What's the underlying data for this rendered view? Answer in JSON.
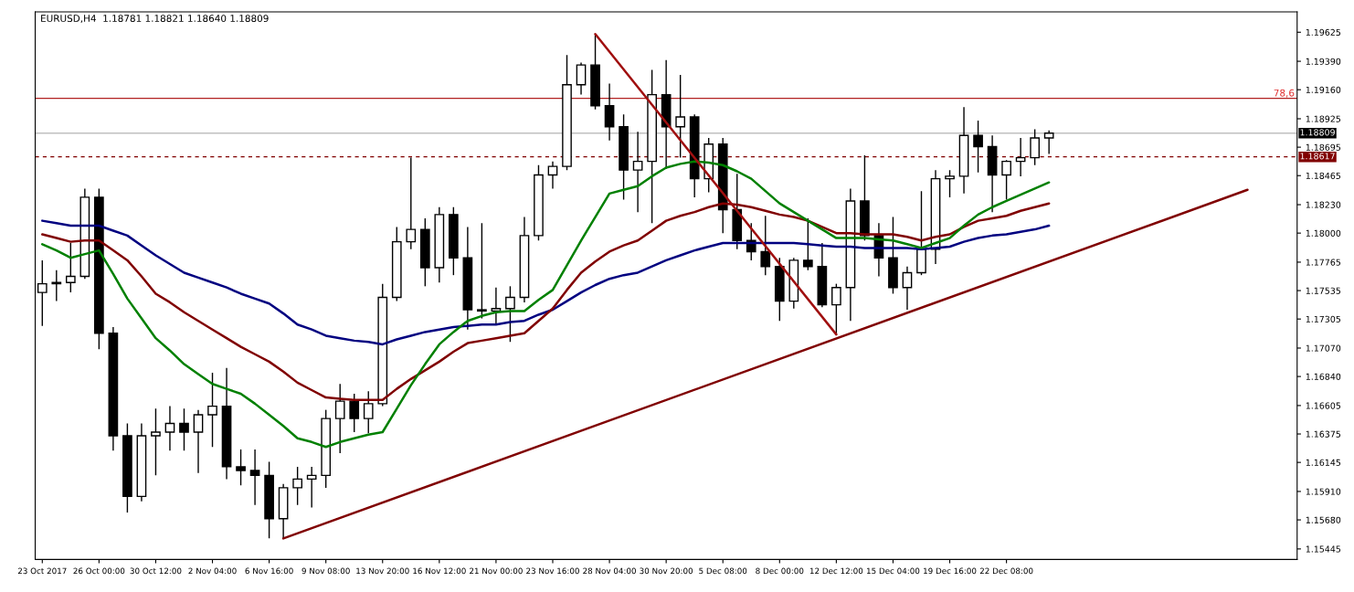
{
  "chart_data": {
    "type": "candlestick",
    "title": "EURUSD,H4  1.18781 1.18821 1.18640 1.18809",
    "categories": [
      "23 Oct 2017",
      null,
      null,
      null,
      "26 Oct 00:00",
      null,
      null,
      null,
      "30 Oct 12:00",
      null,
      null,
      null,
      "2 Nov 04:00",
      null,
      null,
      null,
      "6 Nov 16:00",
      null,
      null,
      null,
      "9 Nov 08:00",
      null,
      null,
      null,
      "13 Nov 20:00",
      null,
      null,
      null,
      "16 Nov 12:00",
      null,
      null,
      null,
      "21 Nov 00:00",
      null,
      null,
      null,
      "23 Nov 16:00",
      null,
      null,
      null,
      "28 Nov 04:00",
      null,
      null,
      null,
      "30 Nov 20:00",
      null,
      null,
      null,
      "5 Dec 08:00",
      null,
      null,
      null,
      "8 Dec 00:00",
      null,
      null,
      null,
      "12 Dec 12:00",
      null,
      null,
      null,
      "15 Dec 04:00",
      null,
      null,
      null,
      "19 Dec 16:00",
      null,
      null,
      null,
      "22 Dec 08:00",
      null,
      null,
      null,
      null,
      null,
      null,
      null,
      null,
      null,
      null,
      null,
      null,
      null,
      null,
      null,
      null,
      null,
      null,
      null,
      null
    ],
    "ohlc": [
      [
        1.1752,
        1.1778,
        1.1725,
        1.1759
      ],
      [
        1.1759,
        1.177,
        1.1745,
        1.176
      ],
      [
        1.176,
        1.1792,
        1.1752,
        1.1765
      ],
      [
        1.1765,
        1.1836,
        1.1763,
        1.1829
      ],
      [
        1.1829,
        1.1836,
        1.1706,
        1.1719
      ],
      [
        1.1719,
        1.1724,
        1.1624,
        1.1636
      ],
      [
        1.1636,
        1.1646,
        1.1574,
        1.1587
      ],
      [
        1.1587,
        1.1646,
        1.1583,
        1.1636
      ],
      [
        1.1636,
        1.1658,
        1.1604,
        1.1639
      ],
      [
        1.1639,
        1.166,
        1.1624,
        1.1646
      ],
      [
        1.1646,
        1.1658,
        1.1624,
        1.1639
      ],
      [
        1.1639,
        1.1657,
        1.1606,
        1.1653
      ],
      [
        1.1653,
        1.1687,
        1.1627,
        1.166
      ],
      [
        1.166,
        1.1691,
        1.1601,
        1.1611
      ],
      [
        1.1611,
        1.1625,
        1.1596,
        1.1608
      ],
      [
        1.1608,
        1.1625,
        1.158,
        1.1604
      ],
      [
        1.1604,
        1.1615,
        1.1553,
        1.1569
      ],
      [
        1.1569,
        1.1597,
        1.1553,
        1.1594
      ],
      [
        1.1594,
        1.1611,
        1.158,
        1.1601
      ],
      [
        1.1601,
        1.1611,
        1.1578,
        1.1604
      ],
      [
        1.1604,
        1.1657,
        1.1594,
        1.165
      ],
      [
        1.165,
        1.1678,
        1.1622,
        1.1664
      ],
      [
        1.1664,
        1.167,
        1.1639,
        1.165
      ],
      [
        1.165,
        1.1672,
        1.1638,
        1.1662
      ],
      [
        1.1662,
        1.1759,
        1.166,
        1.1748
      ],
      [
        1.1748,
        1.1805,
        1.1745,
        1.1793
      ],
      [
        1.1793,
        1.1861,
        1.1787,
        1.1803
      ],
      [
        1.1803,
        1.1812,
        1.1757,
        1.1772
      ],
      [
        1.1772,
        1.1821,
        1.176,
        1.1815
      ],
      [
        1.1815,
        1.1821,
        1.1766,
        1.178
      ],
      [
        1.178,
        1.1805,
        1.1722,
        1.1738
      ],
      [
        1.1738,
        1.1808,
        1.1731,
        1.1737
      ],
      [
        1.1737,
        1.1756,
        1.1727,
        1.1739
      ],
      [
        1.1739,
        1.1757,
        1.1712,
        1.1748
      ],
      [
        1.1748,
        1.1813,
        1.1744,
        1.1798
      ],
      [
        1.1798,
        1.1855,
        1.1794,
        1.1847
      ],
      [
        1.1847,
        1.1858,
        1.1836,
        1.1854
      ],
      [
        1.1854,
        1.1944,
        1.1851,
        1.192
      ],
      [
        1.192,
        1.1938,
        1.1912,
        1.1936
      ],
      [
        1.1936,
        1.1961,
        1.19,
        1.1903
      ],
      [
        1.1903,
        1.1921,
        1.1875,
        1.1886
      ],
      [
        1.1886,
        1.1896,
        1.1827,
        1.1851
      ],
      [
        1.1851,
        1.1882,
        1.1817,
        1.1858
      ],
      [
        1.1858,
        1.1932,
        1.1808,
        1.1912
      ],
      [
        1.1912,
        1.194,
        1.1852,
        1.1886
      ],
      [
        1.1886,
        1.1928,
        1.1861,
        1.1894
      ],
      [
        1.1894,
        1.1896,
        1.1829,
        1.1844
      ],
      [
        1.1844,
        1.1877,
        1.1833,
        1.1872
      ],
      [
        1.1872,
        1.1877,
        1.18,
        1.1819
      ],
      [
        1.1819,
        1.1848,
        1.1787,
        1.1794
      ],
      [
        1.1794,
        1.1808,
        1.1778,
        1.1785
      ],
      [
        1.1785,
        1.1814,
        1.1766,
        1.1773
      ],
      [
        1.1773,
        1.178,
        1.1729,
        1.1745
      ],
      [
        1.1745,
        1.178,
        1.1739,
        1.1778
      ],
      [
        1.1778,
        1.1812,
        1.177,
        1.1773
      ],
      [
        1.1773,
        1.1792,
        1.174,
        1.1742
      ],
      [
        1.1742,
        1.1759,
        1.1718,
        1.1756
      ],
      [
        1.1756,
        1.1836,
        1.1729,
        1.1826
      ],
      [
        1.1826,
        1.1863,
        1.1794,
        1.1798
      ],
      [
        1.1798,
        1.1808,
        1.1765,
        1.178
      ],
      [
        1.178,
        1.1813,
        1.1751,
        1.1756
      ],
      [
        1.1756,
        1.1773,
        1.1738,
        1.1768
      ],
      [
        1.1768,
        1.1834,
        1.1766,
        1.1787
      ],
      [
        1.1787,
        1.1851,
        1.1775,
        1.1844
      ],
      [
        1.1844,
        1.1851,
        1.1829,
        1.1846
      ],
      [
        1.1846,
        1.1902,
        1.1832,
        1.1879
      ],
      [
        1.1879,
        1.1891,
        1.1849,
        1.187
      ],
      [
        1.187,
        1.1879,
        1.1817,
        1.1847
      ],
      [
        1.1847,
        1.1859,
        1.1827,
        1.1858
      ],
      [
        1.1858,
        1.1877,
        1.1846,
        1.1861
      ],
      [
        1.1861,
        1.1884,
        1.1855,
        1.1877
      ],
      [
        1.1877,
        1.1883,
        1.1864,
        1.18809
      ],
      null,
      null,
      null,
      null,
      null,
      null,
      null,
      null,
      null,
      null,
      null,
      null,
      null,
      null,
      null,
      null,
      null
    ],
    "series": [
      {
        "type": "line",
        "color": "#000080",
        "values": [
          1.181,
          1.1808,
          1.1806,
          1.1806,
          1.1806,
          1.1802,
          1.1798,
          1.179,
          1.1782,
          1.1775,
          1.1768,
          1.1764,
          1.176,
          1.1756,
          1.1751,
          1.1747,
          1.1743,
          1.1735,
          1.1726,
          1.1722,
          1.1717,
          1.1715,
          1.1713,
          1.1712,
          1.171,
          1.1714,
          1.1717,
          1.172,
          1.1722,
          1.1724,
          1.1725,
          1.1726,
          1.1726,
          1.1728,
          1.1729,
          1.1734,
          1.1738,
          1.1745,
          1.1752,
          1.1758,
          1.1763,
          1.1766,
          1.1768,
          1.1773,
          1.1778,
          1.1782,
          1.1786,
          1.1789,
          1.1792,
          1.1792,
          1.1792,
          1.1792,
          1.1792,
          1.1792,
          1.1791,
          1.179,
          1.1789,
          1.1789,
          1.1788,
          1.1788,
          1.1788,
          1.1788,
          1.1787,
          1.1788,
          1.1789,
          1.1793,
          1.1796,
          1.1798,
          1.1799,
          1.1801,
          1.1803,
          1.1806,
          null,
          null,
          null,
          null,
          null,
          null,
          null,
          null,
          null,
          null,
          null,
          null,
          null,
          null,
          null,
          null,
          null
        ]
      },
      {
        "type": "line",
        "color": "#800000",
        "values": [
          1.1799,
          1.1796,
          1.1793,
          1.1794,
          1.1794,
          1.1786,
          1.1778,
          1.1765,
          1.1751,
          1.1744,
          1.1736,
          1.1729,
          1.1722,
          1.1715,
          1.1708,
          1.1702,
          1.1696,
          1.1688,
          1.1679,
          1.1673,
          1.1667,
          1.1666,
          1.1665,
          1.1665,
          1.1665,
          1.1674,
          1.1682,
          1.1689,
          1.1696,
          1.1704,
          1.1711,
          1.1713,
          1.1715,
          1.1717,
          1.1719,
          1.1729,
          1.1739,
          1.1754,
          1.1768,
          1.1777,
          1.1785,
          1.179,
          1.1794,
          1.1802,
          1.181,
          1.1814,
          1.1817,
          1.1821,
          1.1824,
          1.1823,
          1.1821,
          1.1818,
          1.1815,
          1.1813,
          1.181,
          1.1805,
          1.18,
          1.18,
          1.1799,
          1.1799,
          1.1799,
          1.1797,
          1.1794,
          1.1797,
          1.1799,
          1.1805,
          1.181,
          1.1812,
          1.1814,
          1.1818,
          1.1821,
          1.1824,
          null,
          null,
          null,
          null,
          null,
          null,
          null,
          null,
          null,
          null,
          null,
          null,
          null,
          null,
          null,
          null,
          null
        ]
      },
      {
        "type": "line",
        "color": "#008000",
        "values": [
          1.1791,
          1.1786,
          1.178,
          1.1783,
          1.1786,
          1.1767,
          1.1747,
          1.1731,
          1.1715,
          1.1705,
          1.1694,
          1.1686,
          1.1678,
          1.1674,
          1.167,
          1.1662,
          1.1653,
          1.1644,
          1.1634,
          1.1631,
          1.1627,
          1.1631,
          1.1634,
          1.1637,
          1.1639,
          1.1658,
          1.1677,
          1.1694,
          1.171,
          1.172,
          1.1729,
          1.1733,
          1.1736,
          1.1737,
          1.1737,
          1.1746,
          1.1754,
          1.1774,
          1.1794,
          1.1813,
          1.1832,
          1.1835,
          1.1838,
          1.1846,
          1.1853,
          1.1856,
          1.1858,
          1.1857,
          1.1855,
          1.185,
          1.1844,
          1.1834,
          1.1824,
          1.1817,
          1.181,
          1.1803,
          1.1796,
          1.1796,
          1.1796,
          1.1795,
          1.1794,
          1.1791,
          1.1788,
          1.1792,
          1.1796,
          1.1806,
          1.1815,
          1.1821,
          1.1826,
          1.1831,
          1.1836,
          1.1841,
          null,
          null,
          null,
          null,
          null,
          null,
          null,
          null,
          null,
          null,
          null,
          null,
          null,
          null,
          null,
          null,
          null
        ]
      },
      {
        "type": "line",
        "color": "#800000",
        "values": [
          null,
          null,
          null,
          null,
          null,
          null,
          null,
          null,
          null,
          null,
          null,
          null,
          null,
          null,
          null,
          null,
          null,
          1.1553,
          null,
          null,
          null,
          null,
          null,
          null,
          null,
          null,
          null,
          null,
          null,
          null,
          null,
          null,
          null,
          null,
          null,
          null,
          null,
          null,
          null,
          null,
          null,
          null,
          null,
          null,
          null,
          null,
          null,
          null,
          null,
          null,
          null,
          null,
          null,
          null,
          null,
          null,
          null,
          null,
          null,
          null,
          null,
          null,
          null,
          null,
          null,
          null,
          null,
          null,
          null,
          null,
          null,
          null,
          null,
          null,
          null,
          null,
          null,
          null,
          null,
          null,
          null,
          null,
          null,
          null,
          null,
          1.1835,
          null,
          null,
          null
        ]
      },
      {
        "type": "line",
        "color": "#a01010",
        "values": [
          null,
          null,
          null,
          null,
          null,
          null,
          null,
          null,
          null,
          null,
          null,
          null,
          null,
          null,
          null,
          null,
          null,
          null,
          null,
          null,
          null,
          null,
          null,
          null,
          null,
          null,
          null,
          null,
          null,
          null,
          null,
          null,
          null,
          null,
          null,
          null,
          null,
          null,
          null,
          1.1961,
          null,
          null,
          null,
          null,
          null,
          null,
          null,
          null,
          null,
          null,
          null,
          null,
          null,
          null,
          null,
          null,
          1.1718,
          null,
          null,
          null,
          null,
          null,
          null,
          null,
          null,
          null,
          null,
          null,
          null,
          null,
          null,
          null,
          null,
          null,
          null,
          null,
          null,
          null,
          null,
          null,
          null,
          null,
          null,
          null,
          null,
          null,
          null,
          null,
          null
        ]
      }
    ],
    "ylim": [
      1.1536,
      1.1979
    ],
    "yticks": [
      1.19625,
      {
        "value": 1.1939,
        "label": "1.19390"
      },
      {
        "value": 1.1916,
        "label": "1.19160"
      },
      1.18925,
      1.18695,
      1.18465,
      {
        "value": 1.1823,
        "label": "1.18230"
      },
      {
        "value": 1.18,
        "label": "1.18000"
      },
      1.17765,
      1.17535,
      1.17305,
      {
        "value": 1.1707,
        "label": "1.17070"
      },
      {
        "value": 1.1684,
        "label": "1.16840"
      },
      1.16605,
      1.16375,
      1.16145,
      {
        "value": 1.1591,
        "label": "1.15910"
      },
      {
        "value": 1.1568,
        "label": "1.15680"
      },
      1.15445
    ],
    "ref_lines": [
      {
        "axis": "y",
        "value": 1.1909,
        "color": "#b22222"
      },
      {
        "axis": "y",
        "value": 1.18809,
        "label": "1.18809",
        "color": "#c0c0c0",
        "line_style": "solid"
      },
      {
        "axis": "y",
        "value": 1.18617,
        "label": "1.18617",
        "color": "#800000",
        "line_style": "dashed"
      }
    ],
    "annotations": [
      {
        "text": "78,6",
        "y": 1.1909
      }
    ],
    "grid": false,
    "legend": false
  }
}
